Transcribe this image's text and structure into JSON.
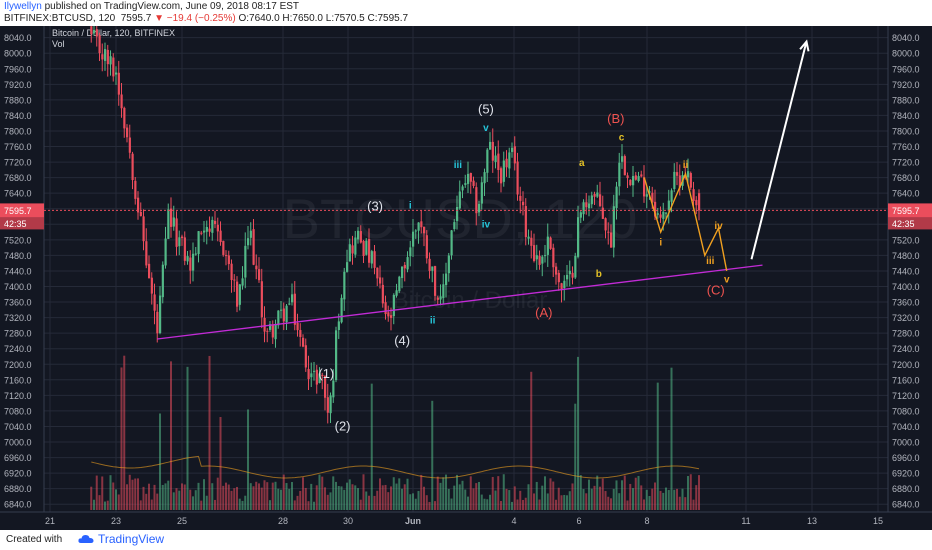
{
  "header": {
    "author": "Ilywellyn",
    "published": "published on TradingView.com, June 09, 2018 08:17 EST",
    "symbol": "BITFINEX:BTCUSD, 120",
    "price": "7595.7",
    "change": "−19.4 (−0.25%)",
    "ohlc": "O:7640.0 H:7650.0 L:7570.5 C:7595.7"
  },
  "footer": {
    "created_label": "Created with",
    "brand": "TradingView"
  },
  "colors": {
    "background": "#131722",
    "grid": "#252a38",
    "up": "#53b987",
    "down": "#eb4d5c",
    "trendline": "#c22bd6",
    "arrow": "#ffffff",
    "wave_white": "#e0e3eb",
    "wave_cyan": "#26c6da",
    "wave_yellow": "#e2c026",
    "wave_red": "#ef5350",
    "wave_orange": "#f0a020"
  },
  "chart_data": {
    "type": "candlestick",
    "title": "Bitcoin / Dollar, 120, BITFINEX",
    "indicator_label": "Vol",
    "watermark_symbol": "BTCUSD, 120",
    "watermark_name": "Bitcoin / Dollar",
    "last_price_label": "7595.7",
    "countdown_label": "42:35",
    "y_ticks": [
      "8040.0",
      "8000.0",
      "7960.0",
      "7920.0",
      "7880.0",
      "7840.0",
      "7800.0",
      "7760.0",
      "7720.0",
      "7680.0",
      "7640.0",
      "7600.0",
      "7560.0",
      "7520.0",
      "7480.0",
      "7440.0",
      "7400.0",
      "7360.0",
      "7320.0",
      "7280.0",
      "7240.0",
      "7200.0",
      "7160.0",
      "7120.0",
      "7080.0",
      "7040.0",
      "7000.0",
      "6960.0",
      "6920.0",
      "6880.0",
      "6840.0"
    ],
    "x_ticks": [
      "21",
      "23",
      "25",
      "28",
      "30",
      "Jun",
      "4",
      "6",
      "8",
      "11",
      "13",
      "15"
    ],
    "ylim": [
      6820,
      8070
    ],
    "price_path": [
      {
        "date": "May 22 06:00",
        "price": 8040
      },
      {
        "date": "May 23 00:00",
        "price": 7950
      },
      {
        "date": "May 23 10:00",
        "price": 7750
      },
      {
        "date": "May 23 18:00",
        "price": 7560
      },
      {
        "date": "May 24 06:00",
        "price": 7280
      },
      {
        "date": "May 24 14:00",
        "price": 7580
      },
      {
        "date": "May 25 06:00",
        "price": 7450
      },
      {
        "date": "May 25 16:00",
        "price": 7570
      },
      {
        "date": "May 26 06:00",
        "price": 7500
      },
      {
        "date": "May 26 16:00",
        "price": 7350
      },
      {
        "date": "May 27 00:00",
        "price": 7550
      },
      {
        "date": "May 27 12:00",
        "price": 7270
      },
      {
        "date": "May 28 06:00",
        "price": 7360
      },
      {
        "date": "May 28 14:00",
        "price": 7240
      },
      {
        "date": "May 28 22:00",
        "price": 7160
      },
      {
        "date": "May 29 04:00",
        "price": 7180
      },
      {
        "date": "May 29 10:00",
        "price": 7060
      },
      {
        "date": "May 29 16:00",
        "price": 7300
      },
      {
        "date": "May 29 22:00",
        "price": 7480
      },
      {
        "date": "May 30 08:00",
        "price": 7530
      },
      {
        "date": "May 30 18:00",
        "price": 7460
      },
      {
        "date": "May 31 06:00",
        "price": 7300
      },
      {
        "date": "May 31 18:00",
        "price": 7460
      },
      {
        "date": "Jun 1 04:00",
        "price": 7580
      },
      {
        "date": "Jun 1 12:00",
        "price": 7460
      },
      {
        "date": "Jun 1 20:00",
        "price": 7340
      },
      {
        "date": "Jun 2 04:00",
        "price": 7560
      },
      {
        "date": "Jun 2 14:00",
        "price": 7680
      },
      {
        "date": "Jun 2 22:00",
        "price": 7600
      },
      {
        "date": "Jun 3 06:00",
        "price": 7760
      },
      {
        "date": "Jun 3 14:00",
        "price": 7690
      },
      {
        "date": "Jun 3 22:00",
        "price": 7740
      },
      {
        "date": "Jun 4 08:00",
        "price": 7560
      },
      {
        "date": "Jun 4 18:00",
        "price": 7460
      },
      {
        "date": "Jun 5 02:00",
        "price": 7520
      },
      {
        "date": "Jun 5 10:00",
        "price": 7390
      },
      {
        "date": "Jun 5 18:00",
        "price": 7420
      },
      {
        "date": "Jun 6 00:00",
        "price": 7580
      },
      {
        "date": "Jun 6 08:00",
        "price": 7640
      },
      {
        "date": "Jun 6 16:00",
        "price": 7600
      },
      {
        "date": "Jun 6 22:00",
        "price": 7500
      },
      {
        "date": "Jun 7 04:00",
        "price": 7740
      },
      {
        "date": "Jun 7 14:00",
        "price": 7680
      },
      {
        "date": "Jun 8 02:00",
        "price": 7650
      },
      {
        "date": "Jun 8 10:00",
        "price": 7560
      },
      {
        "date": "Jun 8 18:00",
        "price": 7660
      },
      {
        "date": "Jun 9 04:00",
        "price": 7700
      },
      {
        "date": "Jun 9 14:00",
        "price": 7596
      }
    ],
    "annotations": {
      "wave_labels": [
        {
          "text": "(5)",
          "date": "Jun 3 04:00",
          "price": 7845,
          "color": "wave_white"
        },
        {
          "text": "v",
          "date": "Jun 3 04:00",
          "price": 7800,
          "color": "wave_cyan"
        },
        {
          "text": "(3)",
          "date": "May 30 20:00",
          "price": 7595,
          "color": "wave_white"
        },
        {
          "text": "i",
          "date": "May 31 22:00",
          "price": 7600,
          "color": "wave_cyan"
        },
        {
          "text": "iii",
          "date": "Jun 2 08:00",
          "price": 7705,
          "color": "wave_cyan"
        },
        {
          "text": "iv",
          "date": "Jun 3 04:00",
          "price": 7552,
          "color": "wave_cyan"
        },
        {
          "text": "ii",
          "date": "Jun 1 14:00",
          "price": 7305,
          "color": "wave_cyan"
        },
        {
          "text": "(4)",
          "date": "May 31 16:00",
          "price": 7250,
          "color": "wave_white"
        },
        {
          "text": "(1)",
          "date": "May 29 08:00",
          "price": 7165,
          "color": "wave_white"
        },
        {
          "text": "(2)",
          "date": "May 29 20:00",
          "price": 7030,
          "color": "wave_white"
        },
        {
          "text": "(B)",
          "date": "Jun 7 02:00",
          "price": 7820,
          "color": "wave_red"
        },
        {
          "text": "c",
          "date": "Jun 7 06:00",
          "price": 7775,
          "color": "wave_yellow"
        },
        {
          "text": "a",
          "date": "Jun 6 02:00",
          "price": 7710,
          "color": "wave_yellow"
        },
        {
          "text": "b",
          "date": "Jun 6 14:00",
          "price": 7425,
          "color": "wave_yellow"
        },
        {
          "text": "(A)",
          "date": "Jun 4 22:00",
          "price": 7322,
          "color": "wave_red"
        },
        {
          "text": "ii",
          "date": "Jun 9 04:00",
          "price": 7705,
          "color": "wave_orange"
        },
        {
          "text": "i",
          "date": "Jun 8 10:00",
          "price": 7505,
          "color": "wave_orange"
        },
        {
          "text": "iv",
          "date": "Jun 10 04:00",
          "price": 7548,
          "color": "wave_orange"
        },
        {
          "text": "iii",
          "date": "Jun 9 22:00",
          "price": 7458,
          "color": "wave_orange"
        },
        {
          "text": "v",
          "date": "Jun 10 10:00",
          "price": 7410,
          "color": "wave_orange"
        },
        {
          "text": "(C)",
          "date": "Jun 10 02:00",
          "price": 7380,
          "color": "wave_red"
        }
      ],
      "projection": [
        {
          "date": "Jun 7 22:00",
          "price": 7680
        },
        {
          "date": "Jun 8 10:00",
          "price": 7540
        },
        {
          "date": "Jun 9 04:00",
          "price": 7690
        },
        {
          "date": "Jun 9 18:00",
          "price": 7480
        },
        {
          "date": "Jun 10 04:00",
          "price": 7550
        },
        {
          "date": "Jun 10 10:00",
          "price": 7440
        }
      ],
      "trendline": [
        {
          "date": "May 24 06:00",
          "price": 7265
        },
        {
          "date": "Jun 11 12:00",
          "price": 7455
        }
      ],
      "arrow": [
        {
          "date": "Jun 11 04:00",
          "price": 7470
        },
        {
          "date": "Jun 12 20:00",
          "price": 8030
        }
      ]
    }
  }
}
